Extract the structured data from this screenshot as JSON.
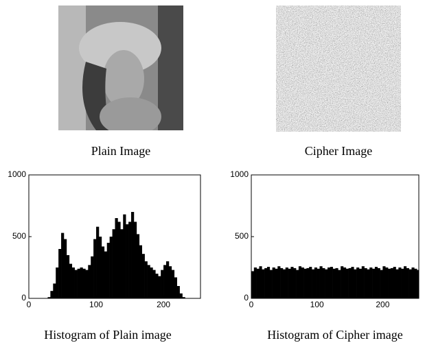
{
  "images": [
    {
      "caption": "Plain Image"
    },
    {
      "caption": "Cipher Image"
    }
  ],
  "chart_data": [
    {
      "type": "bar",
      "title": "Histogram of Plain image",
      "color": "#000000",
      "x": [
        0,
        4,
        8,
        12,
        16,
        20,
        24,
        28,
        32,
        36,
        40,
        44,
        48,
        52,
        56,
        60,
        64,
        68,
        72,
        76,
        80,
        84,
        88,
        92,
        96,
        100,
        104,
        108,
        112,
        116,
        120,
        124,
        128,
        132,
        136,
        140,
        144,
        148,
        152,
        156,
        160,
        164,
        168,
        172,
        176,
        180,
        184,
        188,
        192,
        196,
        200,
        204,
        208,
        212,
        216,
        220,
        224,
        228,
        232,
        236,
        240,
        244,
        248,
        252
      ],
      "values": [
        0,
        0,
        0,
        0,
        0,
        0,
        0,
        10,
        60,
        120,
        250,
        400,
        530,
        480,
        350,
        280,
        250,
        230,
        240,
        250,
        240,
        230,
        270,
        340,
        480,
        580,
        500,
        420,
        380,
        450,
        500,
        560,
        650,
        620,
        560,
        680,
        600,
        620,
        700,
        620,
        520,
        430,
        360,
        300,
        270,
        250,
        230,
        200,
        180,
        230,
        270,
        300,
        260,
        230,
        170,
        100,
        40,
        10,
        0,
        0,
        0,
        0,
        0,
        0
      ],
      "xlim": [
        0,
        255
      ],
      "ylim": [
        0,
        1000
      ],
      "xticks": [
        0,
        100,
        200
      ],
      "yticks": [
        0,
        500,
        1000
      ]
    },
    {
      "type": "bar",
      "title": "Histogram of Cipher image",
      "color": "#000000",
      "x": [
        0,
        4,
        8,
        12,
        16,
        20,
        24,
        28,
        32,
        36,
        40,
        44,
        48,
        52,
        56,
        60,
        64,
        68,
        72,
        76,
        80,
        84,
        88,
        92,
        96,
        100,
        104,
        108,
        112,
        116,
        120,
        124,
        128,
        132,
        136,
        140,
        144,
        148,
        152,
        156,
        160,
        164,
        168,
        172,
        176,
        180,
        184,
        188,
        192,
        196,
        200,
        204,
        208,
        212,
        216,
        220,
        224,
        228,
        232,
        236,
        240,
        244,
        248,
        252
      ],
      "values": [
        220,
        250,
        240,
        260,
        235,
        245,
        255,
        230,
        250,
        240,
        260,
        245,
        235,
        250,
        240,
        255,
        245,
        230,
        260,
        250,
        240,
        245,
        255,
        235,
        250,
        240,
        260,
        245,
        235,
        250,
        255,
        240,
        245,
        230,
        260,
        250,
        240,
        245,
        255,
        235,
        250,
        240,
        260,
        245,
        235,
        250,
        240,
        255,
        245,
        230,
        260,
        250,
        240,
        245,
        255,
        235,
        250,
        240,
        260,
        245,
        235,
        250,
        240,
        230
      ],
      "xlim": [
        0,
        255
      ],
      "ylim": [
        0,
        1000
      ],
      "xticks": [
        0,
        100,
        200
      ],
      "yticks": [
        0,
        500,
        1000
      ]
    }
  ]
}
